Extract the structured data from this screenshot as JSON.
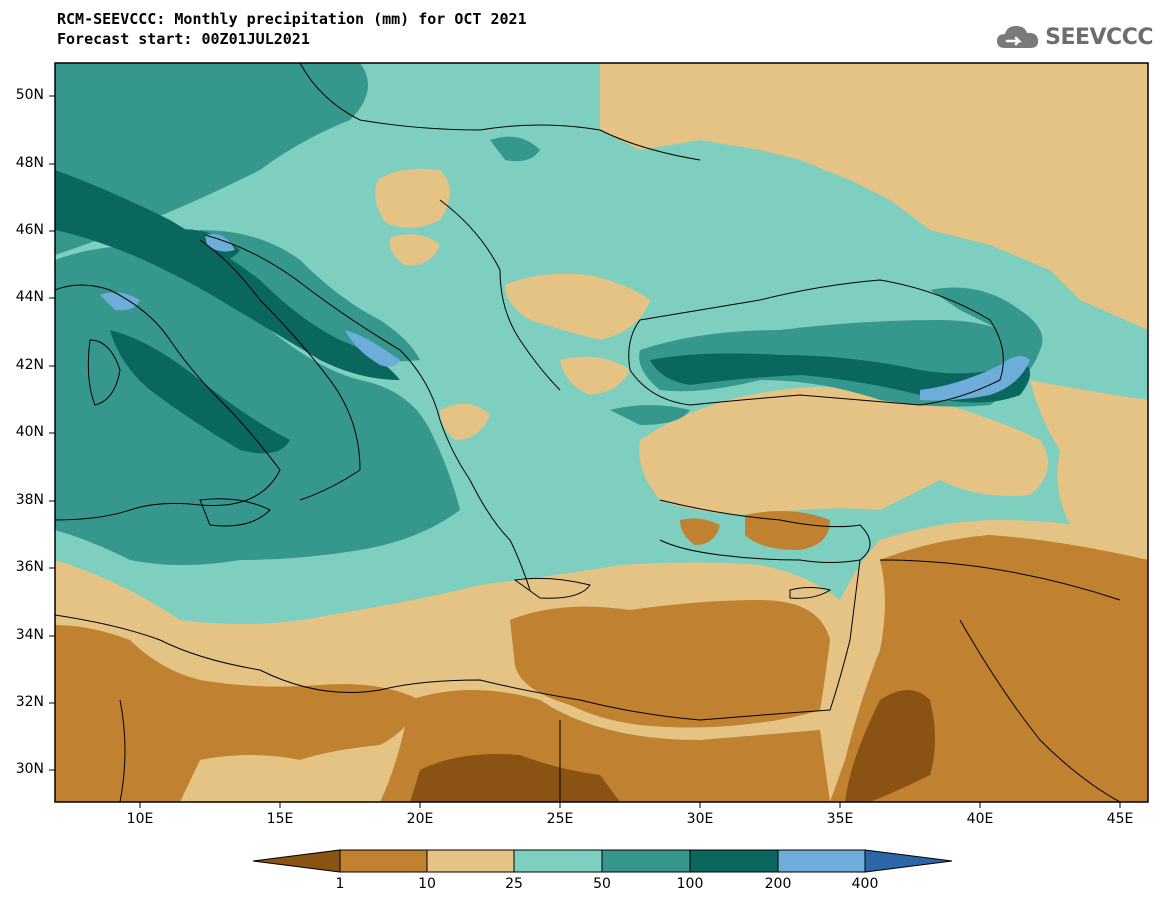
{
  "title": {
    "line1": "RCM-SEEVCCC: Monthly precipitation (mm) for OCT 2021",
    "line2": "Forecast start: 00Z01JUL2021"
  },
  "logo": {
    "text": "SEEVCCC",
    "icon": "cloud-icon"
  },
  "map": {
    "lat_labels": [
      "50N",
      "48N",
      "46N",
      "44N",
      "42N",
      "40N",
      "38N",
      "36N",
      "34N",
      "32N",
      "30N"
    ],
    "lon_labels": [
      "10E",
      "15E",
      "20E",
      "25E",
      "30E",
      "35E",
      "40E",
      "45E"
    ]
  },
  "colorbar": {
    "labels": [
      "1",
      "10",
      "25",
      "50",
      "100",
      "200",
      "400"
    ],
    "colors": [
      "#8a5314",
      "#c08130",
      "#e4c384",
      "#7ecfc0",
      "#36978c",
      "#0a675e",
      "#6eacd9",
      "#2b66a8"
    ]
  }
}
